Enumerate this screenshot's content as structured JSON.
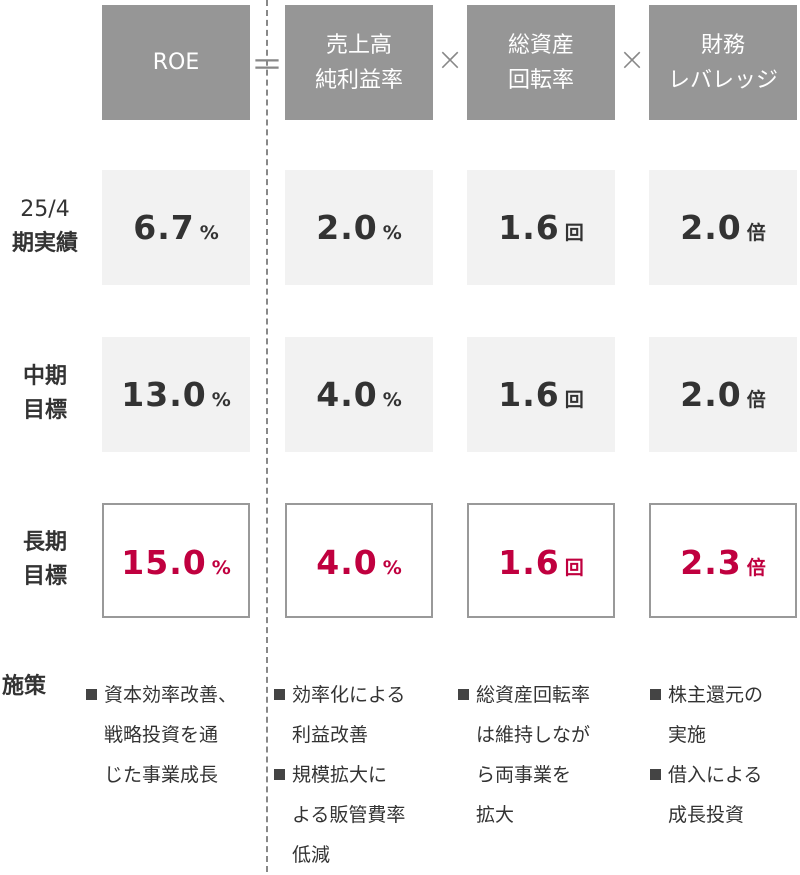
{
  "headers": {
    "roe": "ROE",
    "equals": "＝",
    "times": "×",
    "margin": [
      "売上高",
      "純利益率"
    ],
    "turnover": [
      "総資産",
      "回転率"
    ],
    "leverage": [
      "財務",
      "レバレッジ"
    ]
  },
  "rows": [
    {
      "label": [
        "25/4",
        "期実績"
      ],
      "values": [
        {
          "n": "6.7",
          "u": "%"
        },
        {
          "n": "2.0",
          "u": "%"
        },
        {
          "n": "1.6",
          "u": "回"
        },
        {
          "n": "2.0",
          "u": "倍"
        }
      ]
    },
    {
      "label": [
        "中期",
        "目標"
      ],
      "values": [
        {
          "n": "13.0",
          "u": "%"
        },
        {
          "n": "4.0",
          "u": "%"
        },
        {
          "n": "1.6",
          "u": "回"
        },
        {
          "n": "2.0",
          "u": "倍"
        }
      ]
    },
    {
      "label": [
        "長期",
        "目標"
      ],
      "values": [
        {
          "n": "15.0",
          "u": "%"
        },
        {
          "n": "4.0",
          "u": "%"
        },
        {
          "n": "1.6",
          "u": "回"
        },
        {
          "n": "2.3",
          "u": "倍"
        }
      ]
    }
  ],
  "measures": {
    "label": "施策",
    "cols": [
      [
        [
          "資本効率改善、",
          "戦略投資を通",
          "じた事業成長"
        ]
      ],
      [
        [
          "効率化による",
          "利益改善"
        ],
        [
          "規模拡大に",
          "よる販管費率",
          "低減"
        ]
      ],
      [
        [
          "総資産回転率",
          "は維持しなが",
          "ら両事業を",
          "拡大"
        ]
      ],
      [
        [
          "株主還元の",
          "実施"
        ],
        [
          "借入による",
          "成長投資"
        ]
      ]
    ]
  },
  "colors": {
    "header": "#969696",
    "accent": "#c0003f",
    "cell": "#f2f2f2"
  }
}
